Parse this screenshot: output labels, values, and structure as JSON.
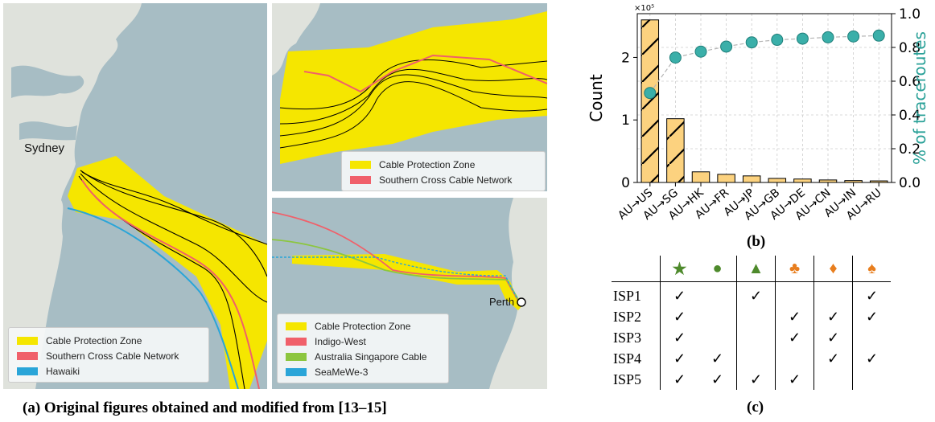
{
  "map_a": {
    "city_label": "Sydney",
    "legend": [
      {
        "label": "Cable Protection Zone",
        "color": "#f5e600"
      },
      {
        "label": "Southern Cross Cable Network",
        "color": "#f0606a"
      },
      {
        "label": "Hawaiki",
        "color": "#2aa5d8"
      }
    ]
  },
  "map_inset_top": {
    "legend": [
      {
        "label": "Cable Protection Zone",
        "color": "#f5e600"
      },
      {
        "label": "Southern Cross Cable Network",
        "color": "#f0606a"
      }
    ]
  },
  "map_inset_bottom": {
    "city_label": "Perth",
    "legend": [
      {
        "label": "Cable Protection Zone",
        "color": "#f5e600"
      },
      {
        "label": "Indigo-West",
        "color": "#f0606a"
      },
      {
        "label": "Australia Singapore Cable",
        "color": "#8cc63f"
      },
      {
        "label": "SeaMeWe-3",
        "color": "#2aa5d8"
      }
    ]
  },
  "captions": {
    "a": "(a) Original figures obtained and modified from [13–15]",
    "b": "(b)",
    "c": "(c)"
  },
  "chart_data": {
    "type": "bar",
    "categories": [
      "AU→US",
      "AU→SG",
      "AU→HK",
      "AU→FR",
      "AU→JP",
      "AU→GB",
      "AU→DE",
      "AU→CN",
      "AU→IN",
      "AU→RU"
    ],
    "series": [
      {
        "values": [
          260000,
          102000,
          17000,
          13000,
          10500,
          6500,
          5500,
          4000,
          3000,
          2500
        ]
      },
      {
        "values": [
          0.53,
          0.74,
          0.775,
          0.805,
          0.83,
          0.845,
          0.852,
          0.86,
          0.865,
          0.87
        ]
      }
    ],
    "ylabel": "Count",
    "y2label": "% of traceroutes",
    "ylim": [
      0,
      270000
    ],
    "y2lim": [
      0,
      1.0
    ],
    "yticks": [
      "0",
      "1",
      "2"
    ],
    "y_multiplier": "×10⁵",
    "y2ticks": [
      "0.0",
      "0.2",
      "0.4",
      "0.6",
      "0.8",
      "1.0"
    ],
    "grid": true,
    "bar_color": "#fcd27f",
    "hatched_bars": [
      0,
      1
    ],
    "marker_color": "#3aafa9",
    "y2label_color": "#2aa198"
  },
  "table": {
    "columns": [
      {
        "glyph": "★",
        "color": "#4e8a2c"
      },
      {
        "glyph": "●",
        "color": "#4e8a2c"
      },
      {
        "glyph": "▲",
        "color": "#4e8a2c"
      },
      {
        "glyph": "♣",
        "color": "#e87e1e"
      },
      {
        "glyph": "♦",
        "color": "#e87e1e"
      },
      {
        "glyph": "♠",
        "color": "#e87e1e"
      }
    ],
    "check": "✓",
    "rows": [
      {
        "label": "ISP1",
        "checks": [
          1,
          0,
          1,
          0,
          0,
          1
        ]
      },
      {
        "label": "ISP2",
        "checks": [
          1,
          0,
          0,
          1,
          1,
          1
        ]
      },
      {
        "label": "ISP3",
        "checks": [
          1,
          0,
          0,
          1,
          1,
          0
        ]
      },
      {
        "label": "ISP4",
        "checks": [
          1,
          1,
          0,
          0,
          1,
          1
        ]
      },
      {
        "label": "ISP5",
        "checks": [
          1,
          1,
          1,
          1,
          0,
          0
        ]
      }
    ]
  }
}
